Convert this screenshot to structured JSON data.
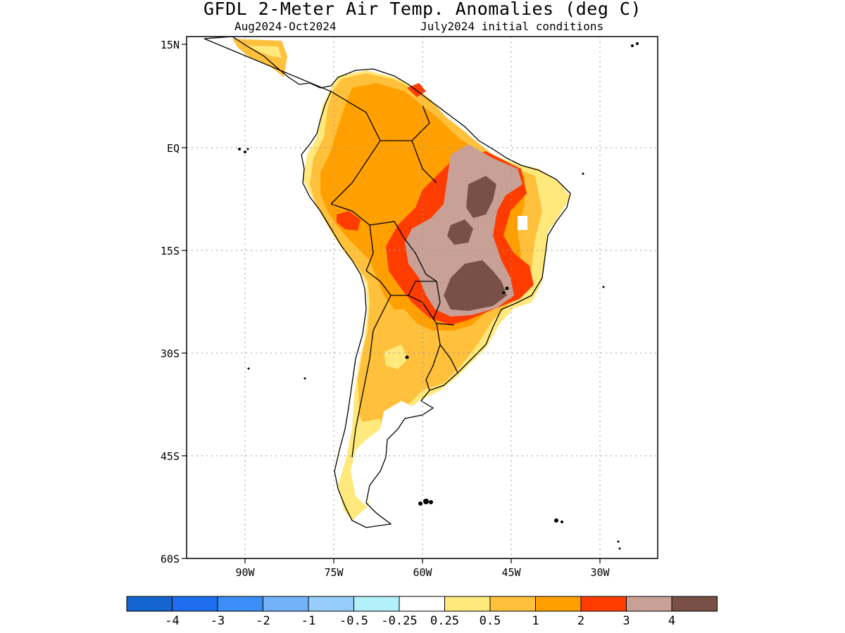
{
  "title": "GFDL 2-Meter Air Temp. Anomalies (deg C)",
  "subtitle_left": "Aug2024-Oct2024",
  "subtitle_right": "July2024 initial conditions",
  "lat_labels": [
    "15N",
    "EQ",
    "15S",
    "30S",
    "45S",
    "60S"
  ],
  "lon_labels": [
    "90W",
    "75W",
    "60W",
    "45W",
    "30W"
  ],
  "colorbar": {
    "labels": [
      "-4",
      "-3",
      "-2",
      "-1",
      "-0.5",
      "-0.25",
      "0.25",
      "0.5",
      "1",
      "2",
      "3",
      "4"
    ],
    "colors": [
      "#1565d0",
      "#1e6ff0",
      "#3c8df5",
      "#72b2f7",
      "#96cdfa",
      "#b4f0fa",
      "#ffffff",
      "#ffe87c",
      "#ffc03c",
      "#ffa000",
      "#ff3c00",
      "#c8a096",
      "#785046"
    ]
  }
}
